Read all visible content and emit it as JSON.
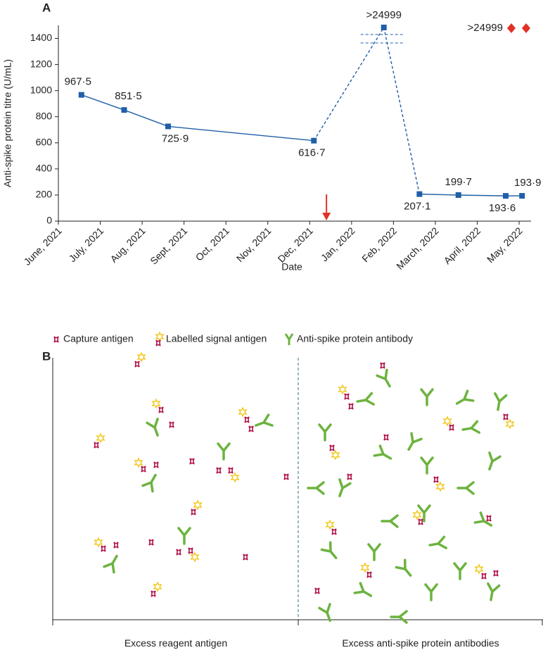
{
  "chart_data": {
    "type": "line",
    "panel_label": "A",
    "ylabel": "Anti-spike protein titre (U/mL)",
    "xlabel": "Date",
    "x": [
      0.55,
      1.57,
      2.62,
      6.1,
      7.77,
      8.62,
      9.55,
      10.68,
      11.07
    ],
    "values": [
      967.5,
      851.5,
      725.9,
      616.7,
      null,
      207.1,
      199.7,
      193.6,
      193.9
    ],
    "value_labels": [
      "967·5",
      "851·5",
      "725·9",
      "616·7",
      null,
      "207·1",
      "199·7",
      "193·6",
      "193·9"
    ],
    "off_scale_label": ">24999",
    "color": "#1f5fa8",
    "event_x": 6.4,
    "event_color": "#e03127",
    "legend_note": {
      "label": ">24999",
      "color": "#e03127"
    },
    "xlim": [
      0,
      11.15
    ],
    "xticks": [
      {
        "value": 0,
        "label": "June, 2021"
      },
      {
        "value": 1,
        "label": "July, 2021"
      },
      {
        "value": 2,
        "label": "Aug, 2021"
      },
      {
        "value": 3,
        "label": "Sept, 2021"
      },
      {
        "value": 4,
        "label": "Oct, 2021"
      },
      {
        "value": 5,
        "label": "Nov, 2021"
      },
      {
        "value": 6,
        "label": "Dec, 2021"
      },
      {
        "value": 7,
        "label": "Jan, 2022"
      },
      {
        "value": 8,
        "label": "Feb, 2022"
      },
      {
        "value": 9,
        "label": "March, 2022"
      },
      {
        "value": 10,
        "label": "April, 2022"
      },
      {
        "value": 11,
        "label": "May, 2022"
      }
    ],
    "ylim": [
      0,
      1500
    ],
    "yticks": [
      0,
      200,
      400,
      600,
      800,
      1000,
      1200,
      1400
    ]
  },
  "panel_b": {
    "panel_label": "B",
    "legend": [
      "Capture antigen",
      "Labelled signal antigen",
      "Anti-spike protein antibody"
    ],
    "left_label": "Excess reagent antigen",
    "right_label": "Excess anti-spike protein antibodies"
  }
}
